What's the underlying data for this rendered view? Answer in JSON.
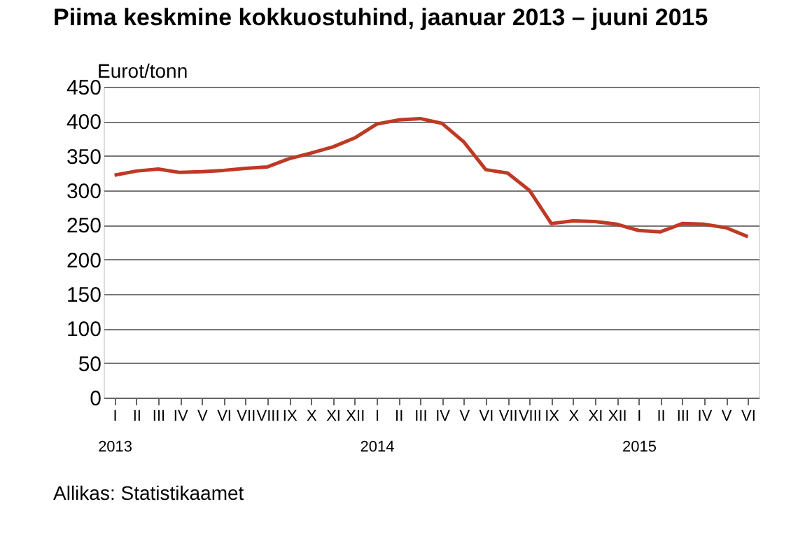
{
  "chart_data": {
    "type": "line",
    "title": "Piima keskmine kokkuostuhind, jaanuar 2013 – juuni 2015",
    "ylabel": "Eurot/tonn",
    "categories": [
      "I\n2013",
      "II",
      "III",
      "IV",
      "V",
      "VI",
      "VII",
      "VIII",
      "IX",
      "X",
      "XI",
      "XII",
      "I\n2014",
      "II",
      "III",
      "IV",
      "V",
      "VI",
      "VII",
      "VIII",
      "IX",
      "X",
      "XI",
      "XII",
      "I\n2015",
      "II",
      "III",
      "IV",
      "V",
      "VI"
    ],
    "series": [
      {
        "color": "#be3a24",
        "values": [
          322,
          328,
          331,
          326,
          327,
          329,
          332,
          334,
          346,
          354,
          363,
          376,
          396,
          402,
          404,
          397,
          370,
          330,
          325,
          300,
          252,
          256,
          255,
          251,
          242,
          240,
          252,
          251,
          246,
          233
        ]
      }
    ],
    "ylim": [
      0,
      450
    ],
    "yticks": [
      0,
      50,
      100,
      150,
      200,
      250,
      300,
      350,
      400,
      450
    ],
    "grid": "y",
    "marker": "none",
    "line_style": "solid",
    "annotations": [
      "Allikas: Statistikaamet"
    ]
  }
}
